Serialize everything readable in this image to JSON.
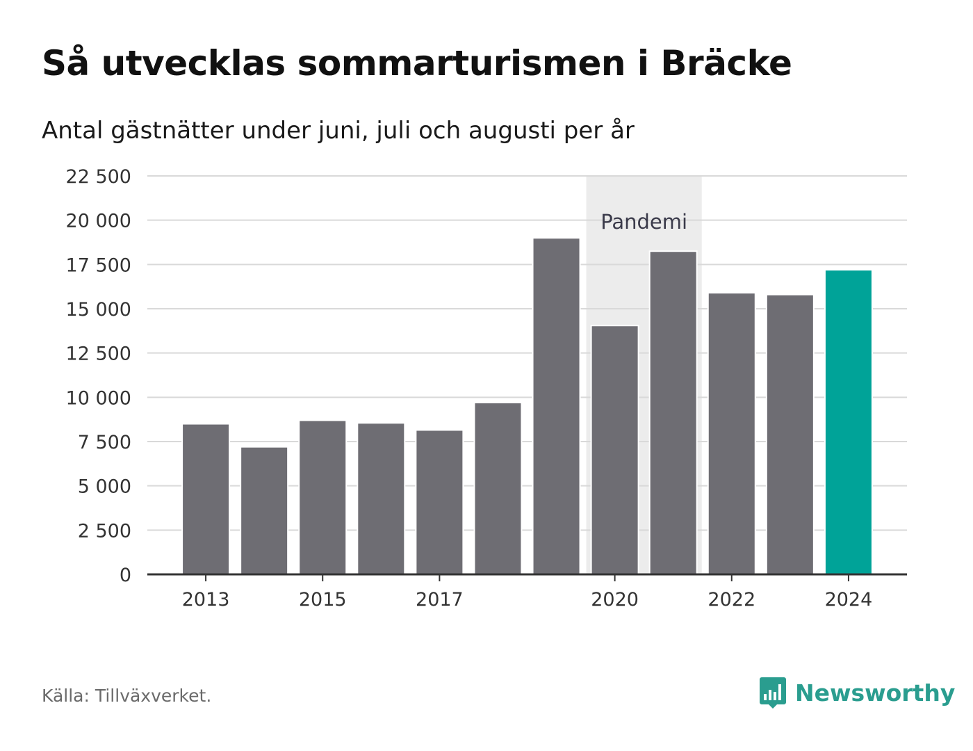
{
  "header": {
    "title": "Så utvecklas sommarturismen i Bräcke",
    "subtitle": "Antal gästnätter under juni, juli och augusti per år"
  },
  "chart_data": {
    "type": "bar",
    "categories": [
      "2013",
      "2014",
      "2015",
      "2016",
      "2017",
      "2018",
      "2019",
      "2020",
      "2021",
      "2022",
      "2023",
      "2024"
    ],
    "values": [
      8500,
      7200,
      8700,
      8550,
      8150,
      9700,
      19000,
      14050,
      18250,
      15900,
      15800,
      17200
    ],
    "x_tick_labels": [
      "2013",
      "2015",
      "2017",
      "2020",
      "2022",
      "2024"
    ],
    "y_ticks": [
      0,
      2500,
      5000,
      7500,
      10000,
      12500,
      15000,
      17500,
      20000,
      22500
    ],
    "y_tick_labels": [
      "0",
      "2 500",
      "5 000",
      "7 500",
      "10 000",
      "12 500",
      "15 000",
      "17 500",
      "20 000",
      "22 500"
    ],
    "ylim": [
      0,
      22500
    ],
    "grid": true,
    "bar_color": "#6e6d73",
    "highlight_color": "#00a398",
    "highlight_category": "2024",
    "annotation": {
      "label": "Pandemi",
      "from": "2020",
      "to": "2021",
      "color": "#ececec"
    }
  },
  "footer": {
    "source": "Källa: Tillväxverket.",
    "brand": "Newsworthy",
    "brand_color": "#2a9d8f",
    "brand_icon": "newsworthy-logo-icon"
  }
}
